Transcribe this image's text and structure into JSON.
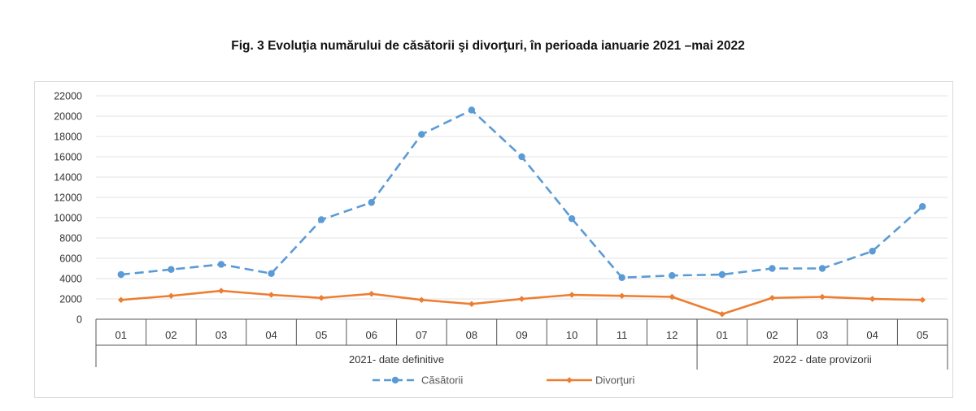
{
  "title": "Fig. 3 Evoluţia numărului de căsătorii şi divorţuri, în perioada ianuarie 2021 –mai 2022",
  "chart_data": {
    "type": "line",
    "categories": [
      "01",
      "02",
      "03",
      "04",
      "05",
      "06",
      "07",
      "08",
      "09",
      "10",
      "11",
      "12",
      "01",
      "02",
      "03",
      "04",
      "05"
    ],
    "groups": [
      {
        "label": "2021- date definitive",
        "count": 12
      },
      {
        "label": "2022 - date provizorii",
        "count": 5
      }
    ],
    "ylim": [
      0,
      22000
    ],
    "yticks": [
      0,
      2000,
      4000,
      6000,
      8000,
      10000,
      12000,
      14000,
      16000,
      18000,
      20000,
      22000
    ],
    "grid": true,
    "legend_position": "bottom",
    "series": [
      {
        "name": "Căsătorii",
        "color": "#5b9bd5",
        "style": "dashed",
        "marker": "circle",
        "values": [
          4400,
          4900,
          5400,
          4500,
          9800,
          11500,
          18200,
          20600,
          16000,
          9900,
          4100,
          4300,
          4400,
          5000,
          5000,
          6700,
          11100
        ]
      },
      {
        "name": "Divorţuri",
        "color": "#ed7d31",
        "style": "solid",
        "marker": "diamond",
        "values": [
          1900,
          2300,
          2800,
          2400,
          2100,
          2500,
          1900,
          1500,
          2000,
          2400,
          2300,
          2200,
          500,
          2100,
          2200,
          2000,
          1900
        ]
      }
    ]
  }
}
